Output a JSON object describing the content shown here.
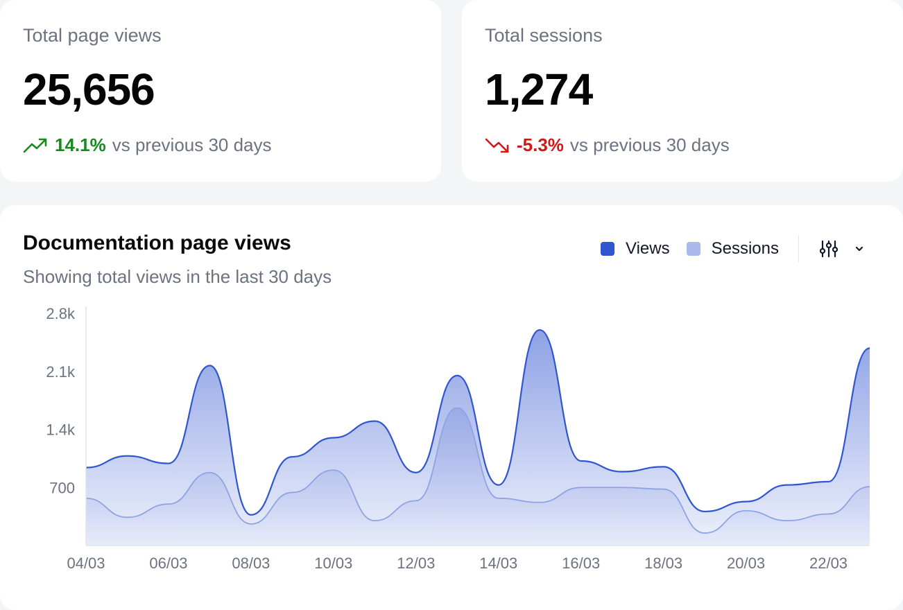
{
  "stats": [
    {
      "label": "Total page views",
      "value": "25,656",
      "change": "14.1%",
      "direction": "up",
      "comparison": "vs previous 30 days",
      "color": "#16891f"
    },
    {
      "label": "Total sessions",
      "value": "1,274",
      "change": "-5.3%",
      "direction": "down",
      "comparison": "vs previous 30 days",
      "color": "#d01818"
    }
  ],
  "chart": {
    "settings_icon": "sliders-icon",
    "dropdown_icon": "chevron-down-icon"
  },
  "chart_data": {
    "type": "area",
    "title": "Documentation page views",
    "subtitle": "Showing total views in the last 30 days",
    "legend_position": "top-right",
    "grid": false,
    "ylim": [
      0,
      2800
    ],
    "y_ticks": [
      700,
      1400,
      2100,
      2800
    ],
    "y_tick_labels": [
      "700",
      "1.4k",
      "2.1k",
      "2.8k"
    ],
    "x": [
      "04/03",
      "05/03",
      "06/03",
      "07/03",
      "08/03",
      "09/03",
      "10/03",
      "11/03",
      "12/03",
      "13/03",
      "14/03",
      "15/03",
      "16/03",
      "17/03",
      "18/03",
      "19/03",
      "20/03",
      "21/03",
      "22/03",
      "23/03"
    ],
    "x_tick_labels": [
      "04/03",
      "06/03",
      "08/03",
      "10/03",
      "12/03",
      "14/03",
      "16/03",
      "18/03",
      "20/03",
      "22/03"
    ],
    "series": [
      {
        "name": "Views",
        "color": "#3055d0",
        "values": [
          940,
          1080,
          990,
          2170,
          370,
          1070,
          1300,
          1500,
          880,
          2050,
          730,
          2600,
          1020,
          890,
          950,
          410,
          530,
          730,
          770,
          2380
        ]
      },
      {
        "name": "Sessions",
        "color": "#a9b9ec",
        "values": [
          570,
          340,
          500,
          880,
          260,
          640,
          910,
          300,
          540,
          1660,
          570,
          520,
          700,
          700,
          680,
          150,
          420,
          300,
          380,
          710
        ]
      }
    ]
  }
}
